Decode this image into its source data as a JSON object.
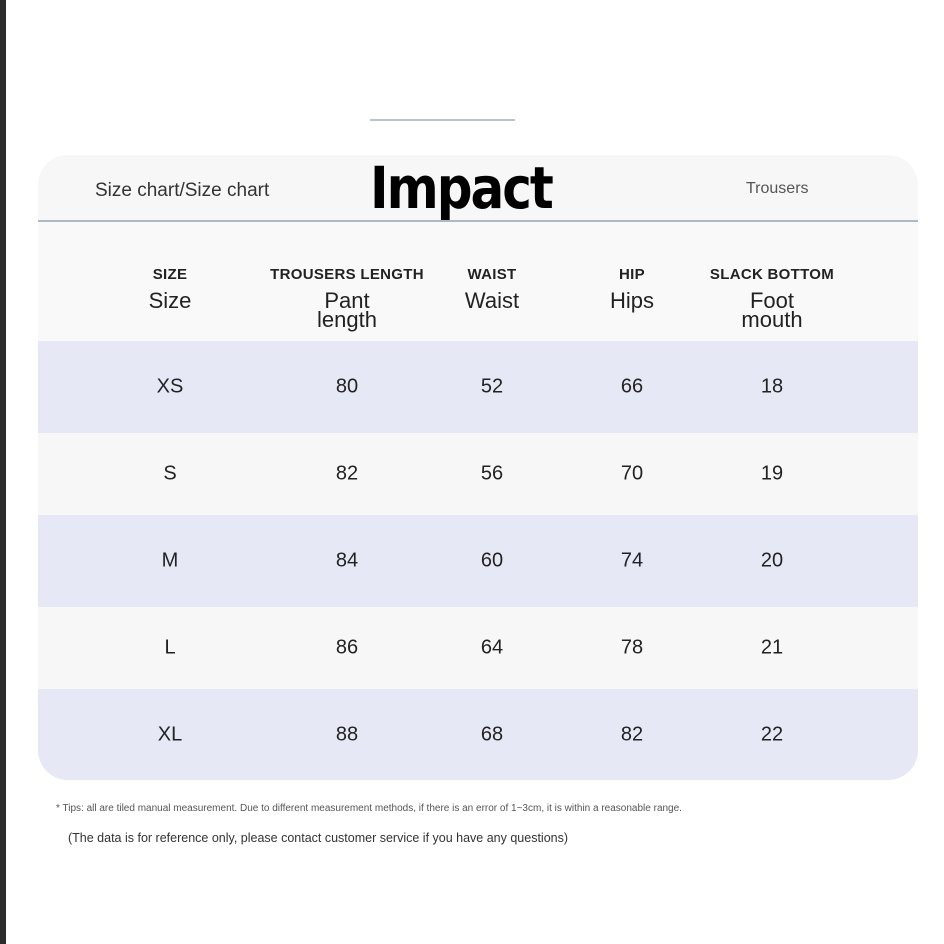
{
  "header": {
    "left": "Size chart/Size chart",
    "title": "Impact",
    "right": "Trousers"
  },
  "table": {
    "columns": [
      {
        "en": "SIZE",
        "local": "Size"
      },
      {
        "en": "TROUSERS LENGTH",
        "local": "Pant length"
      },
      {
        "en": "WAIST",
        "local": "Waist"
      },
      {
        "en": "HIP",
        "local": "Hips"
      },
      {
        "en": "SLACK BOTTOM",
        "local": "Foot mouth"
      }
    ],
    "rows": [
      [
        "XS",
        80,
        52,
        66,
        18
      ],
      [
        "S",
        82,
        56,
        70,
        19
      ],
      [
        "M",
        84,
        60,
        74,
        20
      ],
      [
        "L",
        86,
        64,
        78,
        21
      ],
      [
        "XL",
        88,
        68,
        82,
        22
      ]
    ]
  },
  "notes": {
    "tip": "* Tips: all are tiled manual measurement. Due to different measurement methods, if there is an error of 1~3cm, it is within a reasonable range.",
    "disclaimer": "(The data is for reference only, please contact customer service if you have any questions)"
  }
}
